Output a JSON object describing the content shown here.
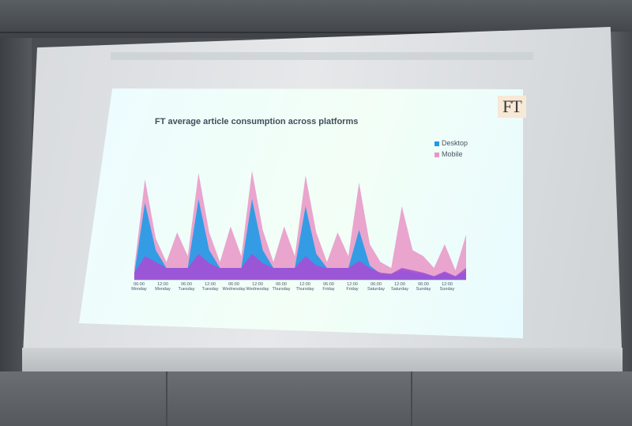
{
  "slide": {
    "logo": "FT",
    "title": "FT average article consumption across platforms",
    "legend": [
      {
        "label": "Desktop",
        "color": "#1f9be8"
      },
      {
        "label": "Mobile",
        "color": "#e895c6"
      }
    ]
  },
  "chart_data": {
    "type": "area",
    "title": "FT average article consumption across platforms",
    "xlabel": "",
    "ylabel": "",
    "x_ticks": [
      [
        "06:00",
        "Monday"
      ],
      [
        "12:00",
        "Monday"
      ],
      [
        "06:00",
        "Tuesday"
      ],
      [
        "12:00",
        "Tuesday"
      ],
      [
        "06:00",
        "Wednesday"
      ],
      [
        "12:00",
        "Wednesday"
      ],
      [
        "06:00",
        "Thursday"
      ],
      [
        "12:00",
        "Thursday"
      ],
      [
        "06:00",
        "Friday"
      ],
      [
        "12:00",
        "Friday"
      ],
      [
        "06:00",
        "Saturday"
      ],
      [
        "12:00",
        "Saturday"
      ],
      [
        "06:00",
        "Sunday"
      ],
      [
        "12:00",
        "Sunday"
      ]
    ],
    "series": [
      {
        "name": "Mobile",
        "color": "#e895c6",
        "values": [
          0.1,
          0.85,
          0.35,
          0.15,
          0.4,
          0.2,
          0.9,
          0.4,
          0.15,
          0.45,
          0.2,
          0.92,
          0.42,
          0.15,
          0.45,
          0.2,
          0.88,
          0.4,
          0.15,
          0.4,
          0.2,
          0.82,
          0.3,
          0.15,
          0.1,
          0.62,
          0.25,
          0.2,
          0.1,
          0.3,
          0.08,
          0.38
        ]
      },
      {
        "name": "Desktop",
        "color": "#1f9be8",
        "values": [
          0.05,
          0.65,
          0.25,
          0.1,
          0.1,
          0.1,
          0.68,
          0.25,
          0.1,
          0.1,
          0.1,
          0.68,
          0.25,
          0.1,
          0.1,
          0.1,
          0.62,
          0.22,
          0.1,
          0.1,
          0.1,
          0.42,
          0.12,
          0.05,
          0.05,
          0.08,
          0.06,
          0.05,
          0.03,
          0.06,
          0.03,
          0.07
        ]
      },
      {
        "name": "",
        "color": "#a64fd6",
        "values": [
          0.06,
          0.2,
          0.15,
          0.1,
          0.1,
          0.1,
          0.22,
          0.14,
          0.1,
          0.1,
          0.1,
          0.22,
          0.14,
          0.1,
          0.1,
          0.1,
          0.2,
          0.12,
          0.1,
          0.1,
          0.1,
          0.16,
          0.1,
          0.06,
          0.05,
          0.1,
          0.08,
          0.06,
          0.03,
          0.07,
          0.03,
          0.1
        ]
      }
    ]
  }
}
